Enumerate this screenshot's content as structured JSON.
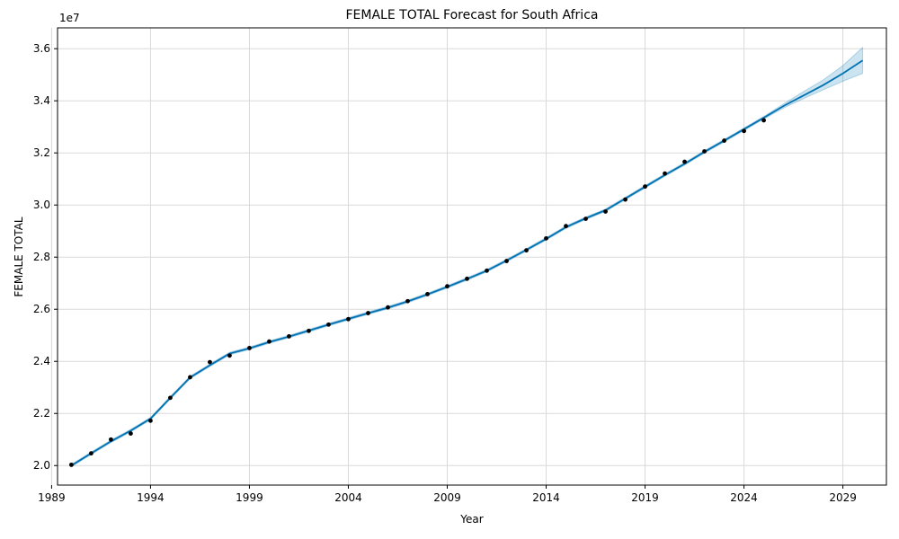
{
  "chart_data": {
    "type": "line",
    "title": "FEMALE TOTAL Forecast for South Africa",
    "xlabel": "Year",
    "ylabel": "FEMALE TOTAL",
    "y_offset_label": "1e7",
    "xlim": [
      1989.3,
      2031.2
    ],
    "ylim": [
      19.25,
      36.8
    ],
    "y_scale_note": "values in units of 1e7 shown as millions in data below",
    "x_ticks": [
      1989,
      1994,
      1999,
      2004,
      2009,
      2014,
      2019,
      2024,
      2029
    ],
    "x_tick_labels": [
      "1989",
      "1994",
      "1999",
      "2004",
      "2009",
      "2014",
      "2019",
      "2024",
      "2029"
    ],
    "y_ticks": [
      20.0,
      22.0,
      24.0,
      26.0,
      28.0,
      30.0,
      32.0,
      34.0,
      36.0
    ],
    "y_tick_labels": [
      "2.0",
      "2.2",
      "2.4",
      "2.6",
      "2.8",
      "3.0",
      "3.2",
      "3.4",
      "3.6"
    ],
    "grid": true,
    "colors": {
      "forecast_line": "#0072b2",
      "band_fill": "#0072b2",
      "observed_points": "#000000",
      "grid": "#d9d9d9"
    },
    "observed": {
      "x": [
        1990,
        1991,
        1992,
        1993,
        1994,
        1995,
        1996,
        1997,
        1998,
        1999,
        2000,
        2001,
        2002,
        2003,
        2004,
        2005,
        2006,
        2007,
        2008,
        2009,
        2010,
        2011,
        2012,
        2013,
        2014,
        2015,
        2016,
        2017,
        2018,
        2019,
        2020,
        2021,
        2022,
        2023,
        2024,
        2025
      ],
      "y": [
        20.03,
        20.47,
        21.0,
        21.23,
        21.72,
        22.6,
        23.39,
        23.97,
        24.22,
        24.51,
        24.76,
        24.96,
        25.17,
        25.41,
        25.62,
        25.85,
        26.07,
        26.31,
        26.58,
        26.88,
        27.17,
        27.48,
        27.85,
        28.26,
        28.72,
        29.19,
        29.47,
        29.75,
        30.21,
        30.71,
        31.21,
        31.66,
        32.06,
        32.47,
        32.84,
        33.25
      ]
    },
    "forecast": {
      "x": [
        1990,
        1991,
        1992,
        1993,
        1994,
        1995,
        1996,
        1997,
        1998,
        1999,
        2000,
        2001,
        2002,
        2003,
        2004,
        2005,
        2006,
        2007,
        2008,
        2009,
        2010,
        2011,
        2012,
        2013,
        2014,
        2015,
        2016,
        2017,
        2018,
        2019,
        2020,
        2021,
        2022,
        2023,
        2024,
        2025,
        2026,
        2027,
        2028,
        2029,
        2030
      ],
      "y": [
        20.0,
        20.47,
        20.93,
        21.34,
        21.8,
        22.6,
        23.38,
        23.85,
        24.3,
        24.5,
        24.74,
        24.95,
        25.18,
        25.41,
        25.63,
        25.85,
        26.06,
        26.3,
        26.57,
        26.86,
        27.16,
        27.48,
        27.87,
        28.28,
        28.7,
        29.15,
        29.49,
        29.8,
        30.25,
        30.7,
        31.15,
        31.58,
        32.04,
        32.47,
        32.91,
        33.35,
        33.8,
        34.2,
        34.6,
        35.05,
        35.55
      ],
      "lower": [
        19.95,
        20.42,
        20.88,
        21.29,
        21.75,
        22.55,
        23.33,
        23.8,
        24.25,
        24.45,
        24.69,
        24.9,
        25.13,
        25.36,
        25.58,
        25.8,
        26.01,
        26.25,
        26.52,
        26.81,
        27.11,
        27.43,
        27.82,
        28.23,
        28.65,
        29.1,
        29.44,
        29.75,
        30.2,
        30.65,
        31.1,
        31.53,
        31.99,
        32.42,
        32.86,
        33.3,
        33.72,
        34.08,
        34.42,
        34.75,
        35.05
      ],
      "upper": [
        20.05,
        20.52,
        20.98,
        21.39,
        21.85,
        22.65,
        23.43,
        23.9,
        24.35,
        24.55,
        24.79,
        25.0,
        25.23,
        25.46,
        25.68,
        25.9,
        26.11,
        26.35,
        26.62,
        26.91,
        27.21,
        27.53,
        27.92,
        28.33,
        28.75,
        29.2,
        29.54,
        29.85,
        30.3,
        30.75,
        31.2,
        31.63,
        32.09,
        32.52,
        32.96,
        33.4,
        33.88,
        34.35,
        34.8,
        35.35,
        36.05
      ]
    }
  }
}
